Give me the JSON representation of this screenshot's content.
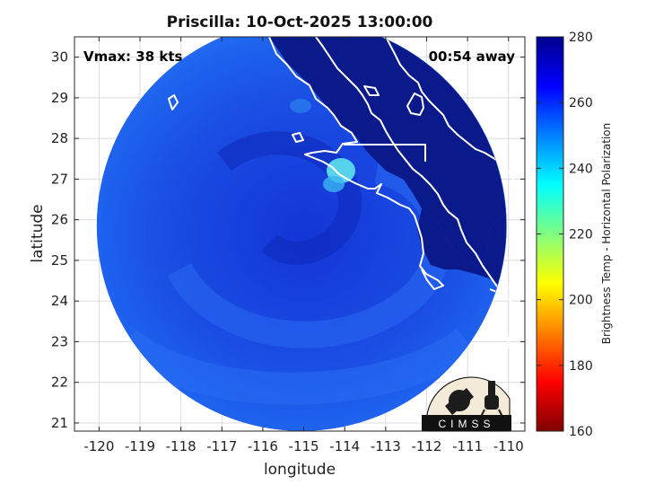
{
  "title": "Priscilla: 10-Oct-2025 13:00:00",
  "vmax_label": "Vmax: 38 kts",
  "time_label": "00:54 away",
  "xlabel": "longitude",
  "ylabel": "latitude",
  "logo_text": "CIMSS",
  "map": {
    "lon_range": [
      -120.6,
      -109.6
    ],
    "lat_range": [
      20.8,
      30.5
    ],
    "lon_ticks": [
      -120,
      -119,
      -118,
      -117,
      -116,
      -115,
      -114,
      -113,
      -112,
      -111,
      -110
    ],
    "lat_ticks": [
      21,
      22,
      23,
      24,
      25,
      26,
      27,
      28,
      29,
      30
    ],
    "swath_center": [
      -115.05,
      25.85
    ],
    "swath_radius_deg": 5.0,
    "storm_center": [
      -115.6,
      25.7
    ],
    "grid": true
  },
  "colorbar": {
    "label": "Brightness Temp - Horizontal Polarization",
    "range": [
      160,
      280
    ],
    "ticks": [
      160,
      180,
      200,
      220,
      240,
      260,
      280
    ],
    "colors": [
      "#800000",
      "#ff0000",
      "#ff8000",
      "#ffff00",
      "#80ff80",
      "#00ffff",
      "#0080ff",
      "#0000ff",
      "#00008f"
    ]
  },
  "colors": {
    "coast": "#ffffff",
    "land_tb": "#0a1a8a",
    "ocean_tb": "#1a55e6",
    "warm_ocean": "#2a7ff5"
  }
}
